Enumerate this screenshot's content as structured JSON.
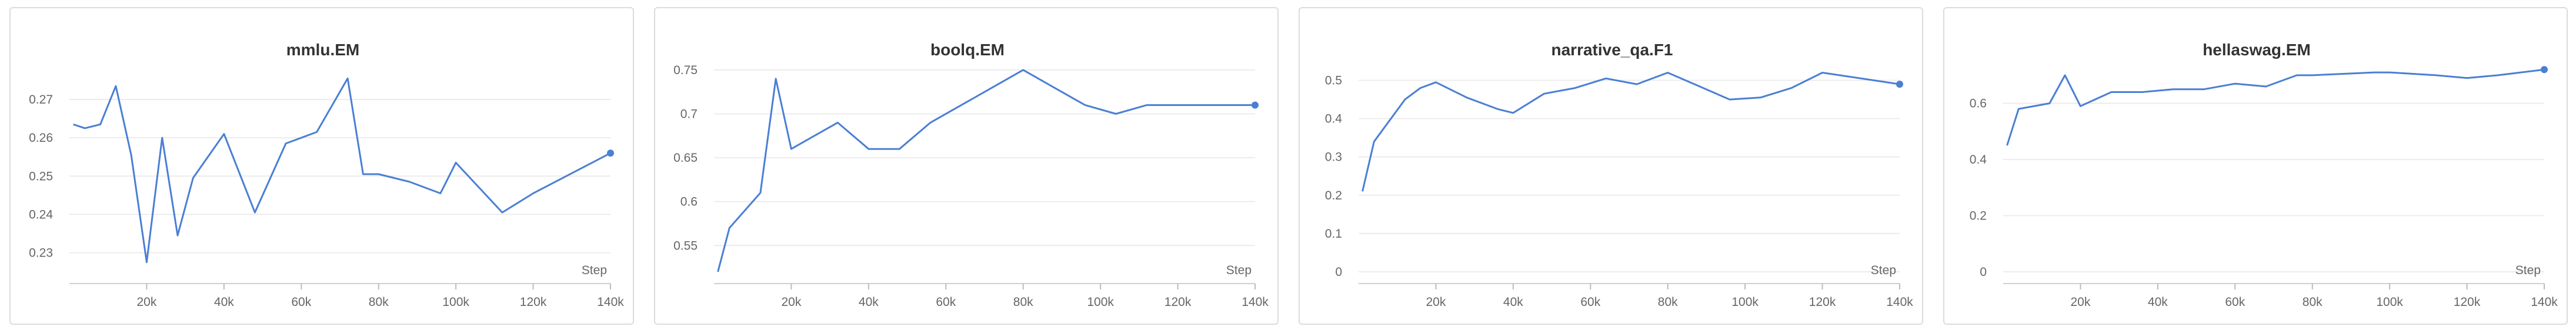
{
  "chart_data": [
    {
      "type": "line",
      "title": "mmlu.EM",
      "xlabel": "Step",
      "ylabel": "",
      "xlim": [
        0,
        140000
      ],
      "ylim": [
        0.225,
        0.28
      ],
      "xticks": [
        20000,
        40000,
        60000,
        80000,
        100000,
        120000,
        140000
      ],
      "xtick_labels": [
        "20k",
        "40k",
        "60k",
        "80k",
        "100k",
        "120k",
        "140k"
      ],
      "yticks": [
        0.23,
        0.24,
        0.25,
        0.26,
        0.27
      ],
      "ytick_labels": [
        "0.23",
        "0.24",
        "0.25",
        "0.26",
        "0.27"
      ],
      "grid": true,
      "color": "#4a7fd4",
      "x": [
        1000,
        4000,
        8000,
        12000,
        16000,
        20000,
        24000,
        28000,
        32000,
        40000,
        48000,
        56000,
        64000,
        72000,
        76000,
        80000,
        88000,
        96000,
        100000,
        112000,
        120000,
        140000
      ],
      "y": [
        0.2635,
        0.2625,
        0.2635,
        0.2735,
        0.2555,
        0.2275,
        0.26,
        0.2345,
        0.2495,
        0.261,
        0.2405,
        0.2585,
        0.2615,
        0.2755,
        0.2505,
        0.2505,
        0.2485,
        0.2455,
        0.2535,
        0.2405,
        0.2455,
        0.256
      ]
    },
    {
      "type": "line",
      "title": "boolq.EM",
      "xlabel": "Step",
      "ylabel": "",
      "xlim": [
        0,
        140000
      ],
      "ylim": [
        0.52,
        0.76
      ],
      "xticks": [
        20000,
        40000,
        60000,
        80000,
        100000,
        120000,
        140000
      ],
      "xtick_labels": [
        "20k",
        "40k",
        "60k",
        "80k",
        "100k",
        "120k",
        "140k"
      ],
      "yticks": [
        0.55,
        0.6,
        0.65,
        0.7,
        0.75
      ],
      "ytick_labels": [
        "0.55",
        "0.6",
        "0.65",
        "0.7",
        "0.75"
      ],
      "grid": true,
      "color": "#4a7fd4",
      "x": [
        1000,
        4000,
        12000,
        16000,
        20000,
        24000,
        32000,
        40000,
        48000,
        56000,
        64000,
        72000,
        80000,
        88000,
        96000,
        104000,
        112000,
        120000,
        140000
      ],
      "y": [
        0.52,
        0.57,
        0.61,
        0.74,
        0.66,
        0.67,
        0.69,
        0.66,
        0.66,
        0.69,
        0.71,
        0.73,
        0.75,
        0.73,
        0.71,
        0.7,
        0.71,
        0.71,
        0.71
      ]
    },
    {
      "type": "line",
      "title": "narrative_qa.F1",
      "xlabel": "Step",
      "ylabel": "",
      "xlim": [
        0,
        140000
      ],
      "ylim": [
        0,
        0.55
      ],
      "xticks": [
        20000,
        40000,
        60000,
        80000,
        100000,
        120000,
        140000
      ],
      "xtick_labels": [
        "20k",
        "40k",
        "60k",
        "80k",
        "100k",
        "120k",
        "140k"
      ],
      "yticks": [
        0,
        0.1,
        0.2,
        0.3,
        0.4,
        0.5
      ],
      "ytick_labels": [
        "0",
        "0.1",
        "0.2",
        "0.3",
        "0.4",
        "0.5"
      ],
      "grid": true,
      "color": "#4a7fd4",
      "x": [
        1000,
        4000,
        12000,
        16000,
        20000,
        28000,
        36000,
        40000,
        48000,
        56000,
        64000,
        72000,
        80000,
        88000,
        96000,
        104000,
        112000,
        120000,
        140000
      ],
      "y": [
        0.21,
        0.34,
        0.45,
        0.48,
        0.495,
        0.455,
        0.425,
        0.415,
        0.465,
        0.48,
        0.505,
        0.49,
        0.52,
        0.485,
        0.45,
        0.455,
        0.48,
        0.52,
        0.49
      ]
    },
    {
      "type": "line",
      "title": "hellaswag.EM",
      "xlabel": "Step",
      "ylabel": "",
      "xlim": [
        0,
        140000
      ],
      "ylim": [
        0,
        0.75
      ],
      "xticks": [
        20000,
        40000,
        60000,
        80000,
        100000,
        120000,
        140000
      ],
      "xtick_labels": [
        "20k",
        "40k",
        "60k",
        "80k",
        "100k",
        "120k",
        "140k"
      ],
      "yticks": [
        0,
        0.2,
        0.4,
        0.6
      ],
      "ytick_labels": [
        "0",
        "0.2",
        "0.4",
        "0.6"
      ],
      "grid": true,
      "color": "#4a7fd4",
      "x": [
        1000,
        4000,
        12000,
        16000,
        20000,
        28000,
        36000,
        44000,
        52000,
        60000,
        68000,
        76000,
        80000,
        88000,
        96000,
        100000,
        112000,
        120000,
        128000,
        140000
      ],
      "y": [
        0.45,
        0.58,
        0.6,
        0.7,
        0.59,
        0.64,
        0.64,
        0.65,
        0.65,
        0.67,
        0.66,
        0.7,
        0.7,
        0.705,
        0.71,
        0.71,
        0.7,
        0.69,
        0.7,
        0.72
      ]
    }
  ]
}
